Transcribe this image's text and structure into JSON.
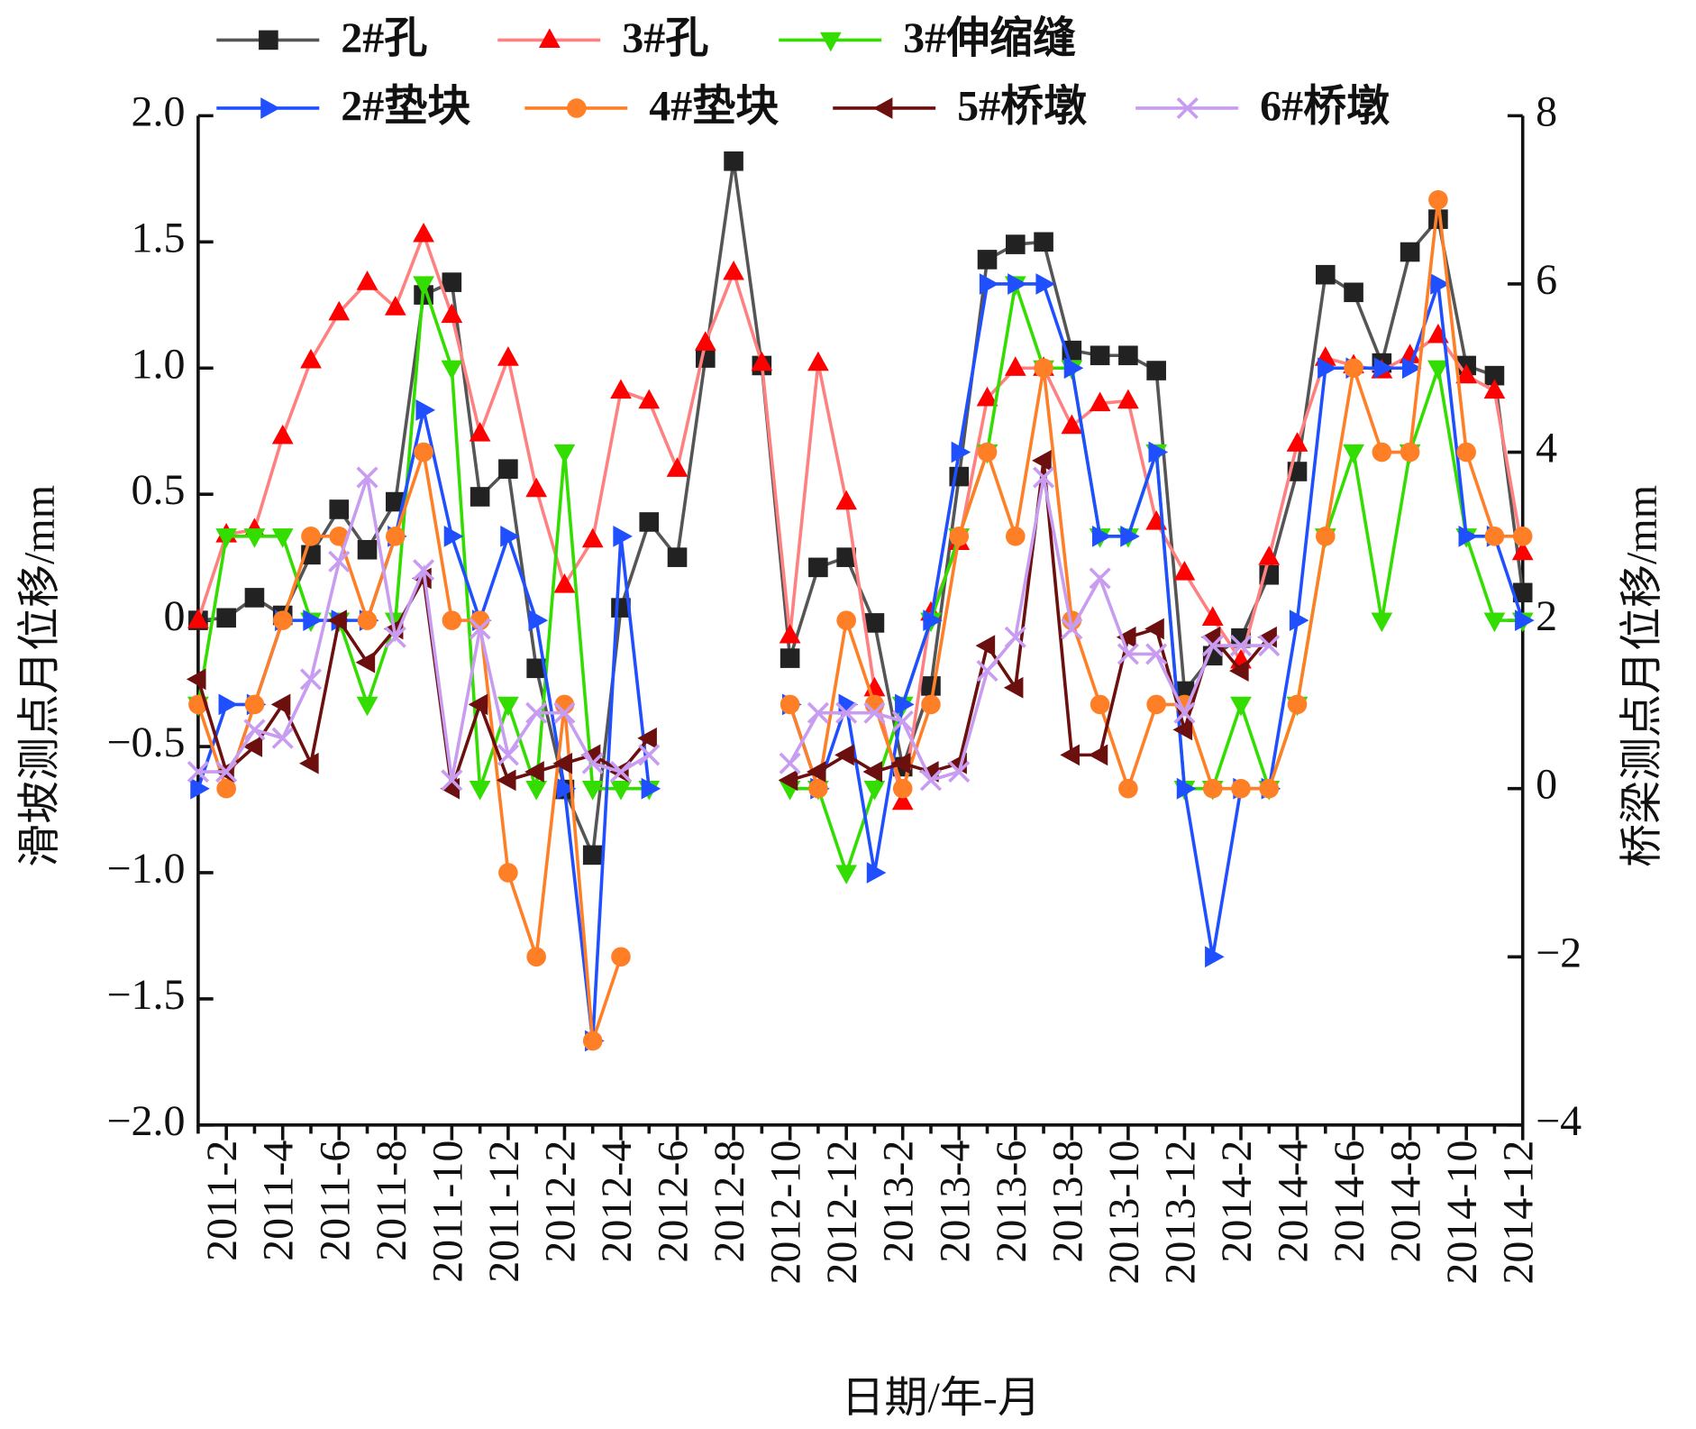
{
  "chart_data": {
    "type": "line",
    "y_label": "滑坡测点月位移/mm",
    "y2_label": "桥梁测点月位移/mm",
    "x_label": "日期/年-月",
    "categories": [
      null,
      "2011-2",
      null,
      "2011-4",
      null,
      "2011-6",
      null,
      "2011-8",
      null,
      "2011-10",
      null,
      "2011-12",
      null,
      "2012-2",
      null,
      "2012-4",
      null,
      "2012-6",
      null,
      "2012-8",
      null,
      "2012-10",
      null,
      "2012-12",
      null,
      "2013-2",
      null,
      "2013-4",
      null,
      "2013-6",
      null,
      "2013-8",
      null,
      "2013-10",
      null,
      "2013-12",
      null,
      "2014-2",
      null,
      "2014-4",
      null,
      "2014-6",
      null,
      "2014-8",
      null,
      "2014-10",
      null,
      "2014-12"
    ],
    "ylim": [
      -2,
      2
    ],
    "yticks": [
      {
        "value": -2,
        "label": "−2.0"
      },
      {
        "value": -1.5,
        "label": "−1.5"
      },
      {
        "value": -1,
        "label": "−1.0"
      },
      {
        "value": -0.5,
        "label": "−0.5"
      },
      0,
      {
        "value": 0.5,
        "label": "0.5"
      },
      {
        "value": 1,
        "label": "1.0"
      },
      {
        "value": 1.5,
        "label": "1.5"
      },
      {
        "value": 2,
        "label": "2.0"
      }
    ],
    "y2lim": [
      -4,
      8
    ],
    "y2ticks": [
      {
        "value": -4,
        "label": "−4"
      },
      {
        "value": -2,
        "label": "−2"
      },
      0,
      2,
      4,
      6,
      8
    ],
    "series": [
      {
        "name": "2#孔",
        "color": "#222222",
        "line_color": "#555555",
        "marker": "square",
        "axis": "y",
        "values": [
          0,
          0.01,
          0.09,
          0.02,
          0.26,
          0.44,
          0.28,
          0.47,
          1.29,
          1.34,
          0.49,
          0.6,
          -0.19,
          -0.67,
          -0.93,
          0.05,
          0.39,
          0.25,
          1.04,
          1.82,
          1.01,
          -0.15,
          0.21,
          0.25,
          -0.01,
          -0.58,
          -0.26,
          0.57,
          1.43,
          1.49,
          1.5,
          1.07,
          1.05,
          1.05,
          0.99,
          -0.28,
          -0.14,
          -0.07,
          0.18,
          0.59,
          1.37,
          1.3,
          1.02,
          1.46,
          1.59,
          1.01,
          0.97,
          0.11
        ]
      },
      {
        "name": "3#孔",
        "color": "#ff0000",
        "line_color": "#ff8080",
        "marker": "triangle-up",
        "axis": "y",
        "values": [
          0,
          0.34,
          0.36,
          0.73,
          1.03,
          1.22,
          1.34,
          1.24,
          1.53,
          1.21,
          0.74,
          1.04,
          0.52,
          0.14,
          0.32,
          0.91,
          0.87,
          0.6,
          1.1,
          1.38,
          1.02,
          -0.06,
          1.02,
          0.47,
          -0.27,
          -0.72,
          0.03,
          0.31,
          0.88,
          1,
          1,
          0.77,
          0.86,
          0.87,
          0.39,
          0.19,
          0.01,
          -0.16,
          0.25,
          0.7,
          1.04,
          1.01,
          0.99,
          1.05,
          1.13,
          0.97,
          0.91,
          0.27
        ]
      },
      {
        "name": "3#伸缩缝",
        "color": "#33dd00",
        "line_color": "#33dd00",
        "marker": "triangle-down",
        "axis": "y2",
        "values": [
          1,
          3,
          3,
          3,
          2,
          2,
          1,
          2,
          6,
          5,
          0,
          1,
          0,
          4,
          0,
          0,
          0,
          null,
          null,
          null,
          null,
          0,
          0,
          -1,
          0,
          1,
          2,
          3,
          4,
          6,
          5,
          5,
          3,
          3,
          4,
          0,
          0,
          1,
          0,
          1,
          3,
          4,
          2,
          4,
          5,
          3,
          2,
          2
        ]
      },
      {
        "name": "2#垫块",
        "color": "#1f4fff",
        "line_color": "#1f4fff",
        "marker": "triangle-right",
        "axis": "y2",
        "values": [
          0,
          1,
          1,
          2,
          2,
          2,
          2,
          3,
          4.5,
          3,
          2,
          3,
          2,
          0,
          -3,
          3,
          0,
          null,
          null,
          null,
          null,
          1,
          0,
          1,
          -1,
          1,
          2,
          4,
          6,
          6,
          6,
          5,
          3,
          3,
          4,
          0,
          -2,
          0,
          0,
          2,
          5,
          5,
          5,
          5,
          6,
          3,
          3,
          2
        ]
      },
      {
        "name": "4#垫块",
        "color": "#ff7f27",
        "line_color": "#ff7f27",
        "marker": "circle",
        "axis": "y2",
        "values": [
          1,
          0,
          1,
          2,
          3,
          3,
          2,
          3,
          4,
          2,
          2,
          -1,
          -2,
          1,
          -3,
          -2,
          null,
          null,
          null,
          null,
          null,
          1,
          0,
          2,
          1,
          0,
          1,
          3,
          4,
          3,
          5,
          2,
          1,
          0,
          1,
          1,
          0,
          0,
          0,
          1,
          3,
          5,
          4,
          4,
          7,
          4,
          3,
          3
        ]
      },
      {
        "name": "5#桥墩",
        "color": "#6b0f0f",
        "line_color": "#6b0f0f",
        "marker": "triangle-left",
        "axis": "y2",
        "values": [
          1.3,
          0.2,
          0.5,
          1,
          0.3,
          2,
          1.5,
          1.9,
          2.5,
          0,
          1,
          0.1,
          0.2,
          0.3,
          0.4,
          0.2,
          0.6,
          null,
          null,
          null,
          null,
          0.1,
          0.2,
          0.4,
          0.2,
          0.3,
          0.2,
          0.3,
          1.7,
          1.2,
          3.9,
          0.4,
          0.4,
          1.8,
          1.9,
          0.7,
          1.8,
          1.4,
          1.8,
          null,
          null,
          null,
          null,
          null,
          null,
          null,
          null,
          null
        ]
      },
      {
        "name": "6#桥墩",
        "color": "#c89cf0",
        "line_color": "#c89cf0",
        "marker": "x",
        "axis": "y2",
        "values": [
          0.2,
          0.2,
          0.7,
          0.6,
          1.3,
          2.7,
          3.7,
          1.8,
          2.6,
          0.1,
          1.9,
          0.4,
          0.9,
          0.9,
          0.3,
          0.2,
          0.4,
          null,
          null,
          null,
          null,
          0.3,
          0.9,
          0.9,
          0.9,
          0.8,
          0.1,
          0.2,
          1.4,
          1.8,
          3.7,
          1.9,
          2.5,
          1.6,
          1.6,
          0.9,
          1.7,
          1.7,
          1.7,
          null,
          null,
          null,
          null,
          null,
          null,
          null,
          null,
          null
        ]
      }
    ]
  }
}
